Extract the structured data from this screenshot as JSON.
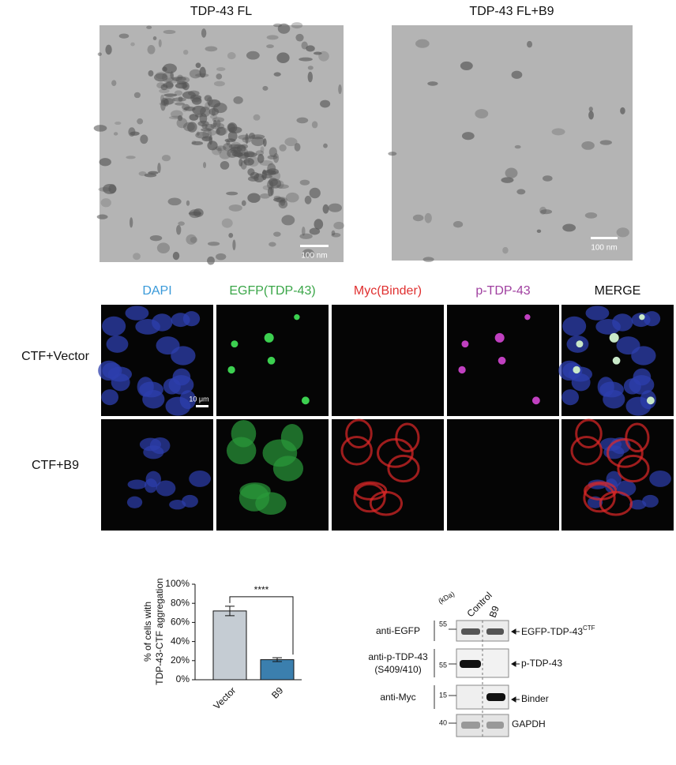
{
  "tem": {
    "panels": [
      {
        "title": "TDP-43 FL",
        "scale_bar": "100 nm"
      },
      {
        "title": "TDP-43 FL+B9",
        "scale_bar": "100 nm"
      }
    ]
  },
  "microscopy": {
    "channels": [
      "DAPI",
      "EGFP(TDP-43)",
      "Myc(Binder)",
      "p-TDP-43",
      "MERGE"
    ],
    "channel_colors": [
      "#3a9ad9",
      "#3aa648",
      "#e03030",
      "#a040a0",
      "#111111"
    ],
    "rows": [
      "CTF+Vector",
      "CTF+B9"
    ],
    "scale_bar": "10 μm"
  },
  "chart_data": {
    "type": "bar",
    "y_label": [
      "% of cells with",
      "TDP-43-CTF aggregation"
    ],
    "categories": [
      "Vector",
      "B9"
    ],
    "values": [
      72,
      21
    ],
    "errors": [
      5,
      2
    ],
    "colors": [
      "#c5ccd3",
      "#3b7fae"
    ],
    "ylim": [
      0,
      100
    ],
    "yticks": [
      {
        "value": 0,
        "label": "0%"
      },
      {
        "value": 20,
        "label": "20%"
      },
      {
        "value": 40,
        "label": "40%"
      },
      {
        "value": 60,
        "label": "60%"
      },
      {
        "value": 80,
        "label": "80%"
      },
      {
        "value": 100,
        "label": "100%"
      }
    ],
    "annotation": "****"
  },
  "blot": {
    "unit": "(kDa)",
    "lanes": [
      "Control",
      "B9"
    ],
    "rows": [
      {
        "antibody": [
          "anti-EGFP"
        ],
        "marker": "55",
        "target": "EGFP-TDP-43",
        "target_sup": "CTF"
      },
      {
        "antibody": [
          "anti-p-TDP-43",
          "(S409/410)"
        ],
        "marker": "55",
        "target": "p-TDP-43"
      },
      {
        "antibody": [
          "anti-Myc"
        ],
        "marker": "15",
        "target": "Binder"
      },
      {
        "marker": "40",
        "target": "GAPDH"
      }
    ]
  }
}
